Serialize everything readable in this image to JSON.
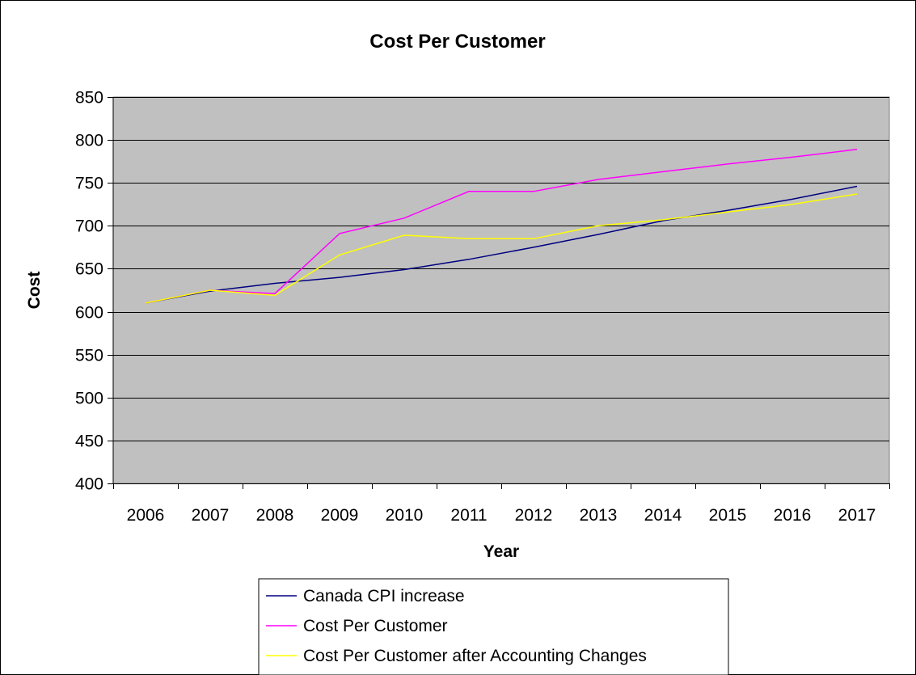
{
  "chart_data": {
    "type": "line",
    "title": "Cost Per Customer",
    "xlabel": "Year",
    "ylabel": "Cost",
    "ylim": [
      400,
      850
    ],
    "ytick_step": 50,
    "categories": [
      "2006",
      "2007",
      "2008",
      "2009",
      "2010",
      "2011",
      "2012",
      "2013",
      "2014",
      "2015",
      "2016",
      "2017"
    ],
    "grid": "horizontal",
    "plot_background": "#c0c0c0",
    "legend_position": "bottom",
    "series": [
      {
        "name": "Canada CPI increase",
        "color": "#000080",
        "values": [
          610,
          624,
          633,
          640,
          649,
          661,
          675,
          690,
          706,
          718,
          731,
          746
        ]
      },
      {
        "name": "Cost Per Customer",
        "color": "#ff00ff",
        "values": [
          610,
          625,
          621,
          691,
          709,
          740,
          740,
          754,
          763,
          772,
          780,
          789
        ]
      },
      {
        "name": "Cost Per Customer after Accounting Changes",
        "color": "#ffff00",
        "values": [
          610,
          625,
          619,
          666,
          689,
          685,
          685,
          700,
          707,
          716,
          725,
          737
        ]
      }
    ]
  }
}
